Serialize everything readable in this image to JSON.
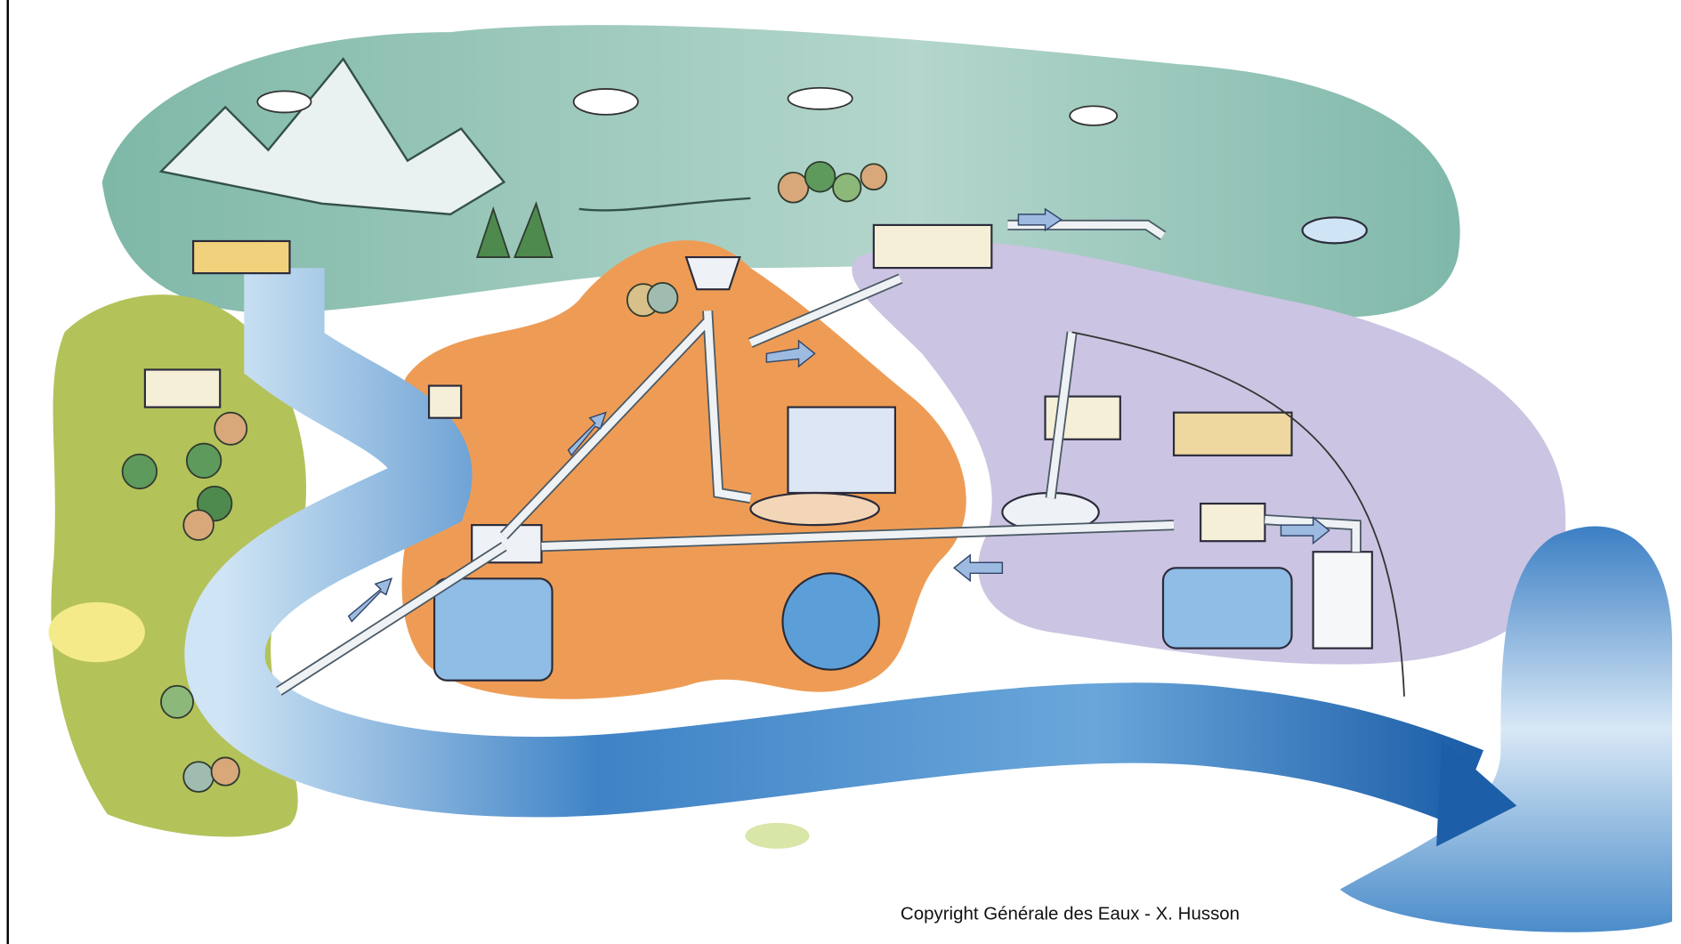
{
  "credit": "Copyright Générale des Eaux - X. Husson"
}
